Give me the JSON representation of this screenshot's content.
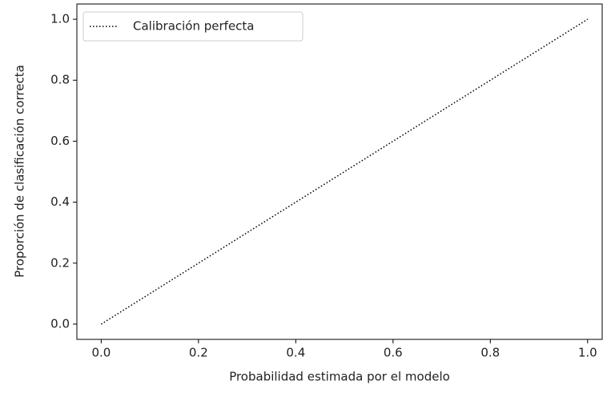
{
  "chart_data": {
    "type": "line",
    "x_label": "Probabilidad estimada por el modelo",
    "y_label": "Proporción de clasificación correcta",
    "x": [
      0,
      1
    ],
    "series": [
      {
        "name": "Calibración perfecta",
        "color": "#000000",
        "style": "dotted",
        "values": [
          0,
          1
        ]
      }
    ],
    "xlim": [
      -0.05,
      1.03
    ],
    "ylim": [
      -0.05,
      1.05
    ],
    "xticks": [
      {
        "value": 0,
        "label": "0.0"
      },
      0.2,
      0.4,
      0.6,
      0.8,
      {
        "value": 1,
        "label": "1.0"
      }
    ],
    "yticks": [
      {
        "value": 0,
        "label": "0.0"
      },
      0.2,
      0.4,
      0.6,
      0.8,
      {
        "value": 1,
        "label": "1.0"
      }
    ],
    "grid": false,
    "legend": "upper left"
  }
}
